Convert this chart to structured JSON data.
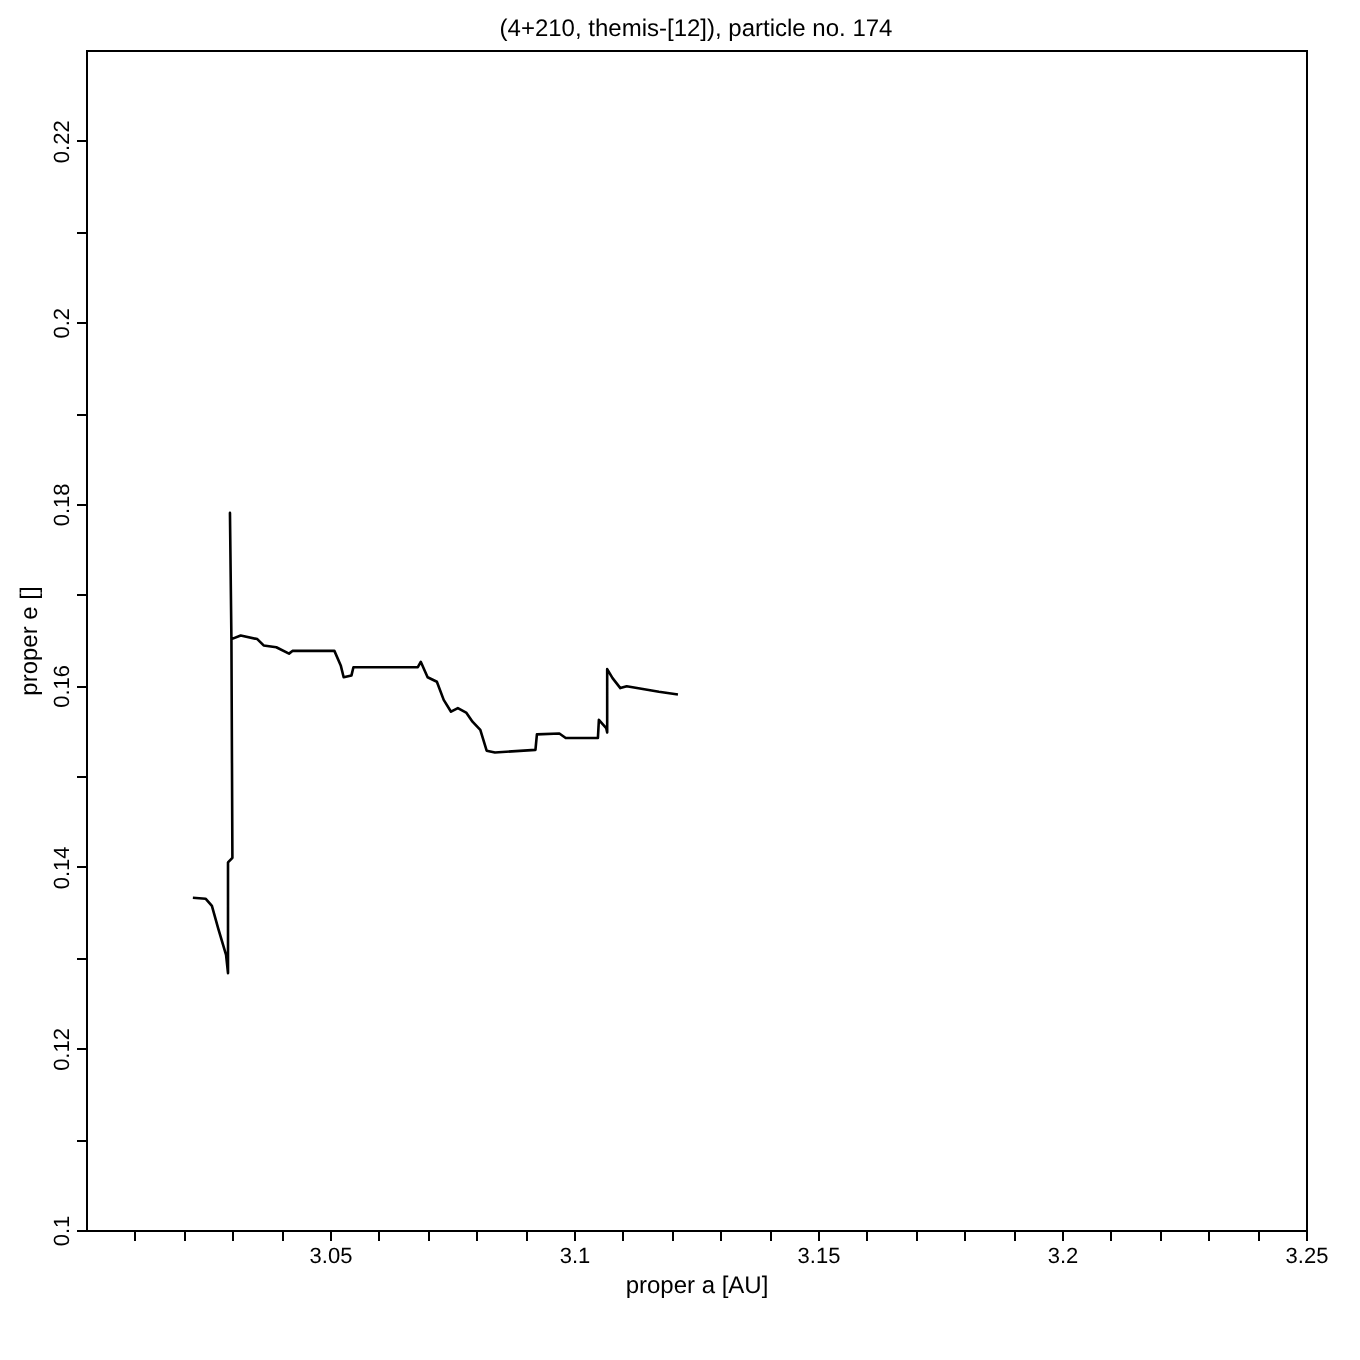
{
  "chart_data": {
    "type": "line",
    "title": "(4+210, themis-[12]), particle no. 174",
    "xlabel": "proper a [AU]",
    "ylabel": "proper e []",
    "xlim": [
      3.0,
      3.25
    ],
    "ylim": [
      0.1,
      0.23
    ],
    "xticks": [
      {
        "value": 3.01,
        "label": null
      },
      {
        "value": 3.02,
        "label": null
      },
      {
        "value": 3.03,
        "label": null
      },
      {
        "value": 3.04,
        "label": null
      },
      3.05,
      {
        "value": 3.06,
        "label": null
      },
      {
        "value": 3.07,
        "label": null
      },
      {
        "value": 3.08,
        "label": null
      },
      {
        "value": 3.09,
        "label": null
      },
      3.1,
      {
        "value": 3.11,
        "label": null
      },
      {
        "value": 3.12,
        "label": null
      },
      {
        "value": 3.13,
        "label": null
      },
      {
        "value": 3.14,
        "label": null
      },
      3.15,
      {
        "value": 3.16,
        "label": null
      },
      {
        "value": 3.17,
        "label": null
      },
      {
        "value": 3.18,
        "label": null
      },
      {
        "value": 3.19,
        "label": null
      },
      3.2,
      {
        "value": 3.21,
        "label": null
      },
      {
        "value": 3.22,
        "label": null
      },
      {
        "value": 3.23,
        "label": null
      },
      {
        "value": 3.24,
        "label": null
      },
      3.25
    ],
    "yticks": [
      0.1,
      {
        "value": 0.11,
        "label": null
      },
      0.12,
      {
        "value": 0.13,
        "label": null
      },
      0.14,
      {
        "value": 0.15,
        "label": null
      },
      0.16,
      {
        "value": 0.17,
        "label": null
      },
      0.18,
      {
        "value": 0.19,
        "label": null
      },
      0.2,
      {
        "value": 0.21,
        "label": null
      },
      0.22
    ],
    "grid": false,
    "marker": "none",
    "line_style": "solid",
    "series": [
      {
        "color": "#000000",
        "x": [
          3.0219,
          3.0245,
          3.0258,
          3.0271,
          3.0287,
          3.0291,
          3.0291,
          3.03,
          3.0298,
          3.0295,
          3.0298,
          3.0317,
          3.0351,
          3.0364,
          3.039,
          3.0416,
          3.0423,
          3.0502,
          3.0509,
          3.0522,
          3.0528,
          3.0544,
          3.0548,
          3.068,
          3.0686,
          3.07,
          3.0719,
          3.0733,
          3.0748,
          3.0762,
          3.0779,
          3.0792,
          3.0808,
          3.0821,
          3.0838,
          3.0921,
          3.0924,
          3.097,
          3.0983,
          3.1049,
          3.1051,
          3.1066,
          3.1068,
          3.1068,
          3.1079,
          3.1095,
          3.1108,
          3.1174,
          3.1213
        ],
        "values": [
          0.1366,
          0.1365,
          0.1357,
          0.1332,
          0.1303,
          0.1283,
          0.1405,
          0.141,
          0.1651,
          0.179,
          0.1651,
          0.1655,
          0.1651,
          0.1644,
          0.1642,
          0.1635,
          0.1638,
          0.1638,
          0.1638,
          0.1622,
          0.1609,
          0.1611,
          0.162,
          0.162,
          0.1626,
          0.1609,
          0.1604,
          0.1584,
          0.1571,
          0.1575,
          0.157,
          0.156,
          0.1551,
          0.1528,
          0.1526,
          0.1529,
          0.1546,
          0.1547,
          0.1542,
          0.1542,
          0.1562,
          0.1553,
          0.1548,
          0.1618,
          0.1608,
          0.1597,
          0.1599,
          0.1593,
          0.159
        ]
      }
    ]
  }
}
